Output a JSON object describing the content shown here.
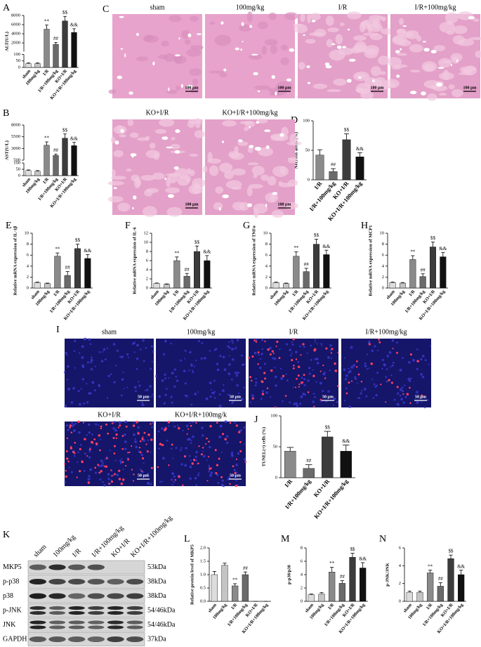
{
  "chart_data": [
    {
      "type": "bar",
      "label": "A",
      "ylabel": "ALT(U/L)",
      "categories": [
        "sham",
        "100mg/kg",
        "I/R",
        "I/R+100mg/kg",
        "KO+I/R",
        "KO+I/R+100mg/kg"
      ],
      "values": [
        30,
        30,
        5000,
        1700,
        6800,
        4300
      ],
      "errors": [
        5,
        5,
        900,
        400,
        1000,
        800
      ],
      "annotations": [
        null,
        null,
        "**",
        "##",
        "$$",
        "&&"
      ],
      "colors": [
        "#dcdcdc",
        "#c4c4c4",
        "#8a8a8a",
        "#6a6a6a",
        "#3c3c3c",
        "#111111"
      ],
      "ylim": [
        0,
        8000
      ],
      "ybreak": [
        100,
        100
      ],
      "yticks": [
        0,
        50,
        100,
        2000,
        4000,
        6000,
        8000
      ]
    },
    {
      "type": "bar",
      "label": "B",
      "ylabel": "AST(U/L)",
      "categories": [
        "sham",
        "100mg/kg",
        "I/R",
        "I/R+100mg/kg",
        "KO+I/R",
        "KO+I/R+100mg/kg"
      ],
      "values": [
        40,
        35,
        3700,
        1500,
        5200,
        3600
      ],
      "errors": [
        5,
        5,
        700,
        300,
        900,
        700
      ],
      "annotations": [
        null,
        null,
        "**",
        "##",
        "$$",
        "&&"
      ],
      "colors": [
        "#dcdcdc",
        "#c4c4c4",
        "#8a8a8a",
        "#6a6a6a",
        "#3c3c3c",
        "#111111"
      ],
      "ylim": [
        0,
        8000
      ],
      "ybreak": [
        100,
        500
      ],
      "yticks": [
        0,
        50,
        100,
        500,
        3000,
        5500,
        8000
      ]
    },
    {
      "type": "bar",
      "label": "D",
      "ylabel": "Necrosis areas (%)",
      "categories": [
        "I/R",
        "I/R+100mg/kg",
        "KO+I/R",
        "KO+I/R+100mg/kg"
      ],
      "values": [
        42,
        14,
        68,
        39
      ],
      "errors": [
        9,
        5,
        10,
        7
      ],
      "annotations": [
        null,
        "##",
        "$$",
        "&&"
      ],
      "colors": [
        "#8a8a8a",
        "#6a6a6a",
        "#3c3c3c",
        "#111111"
      ],
      "ylim": [
        0,
        100
      ],
      "yticks": [
        0,
        50,
        100
      ]
    },
    {
      "type": "bar",
      "label": "E",
      "ylabel": "Relative mRNA expression of IL-1β",
      "categories": [
        "sham",
        "100mg/kg",
        "I/R",
        "I/R+100mg/kg",
        "KO+I/R",
        "KO+I/R+100mg/kg"
      ],
      "values": [
        1.0,
        0.8,
        5.8,
        2.3,
        7.2,
        5.4
      ],
      "errors": [
        0.1,
        0.1,
        0.6,
        0.7,
        0.8,
        0.7
      ],
      "annotations": [
        null,
        null,
        "**",
        "##",
        "$$",
        "&&"
      ],
      "colors": [
        "#dcdcdc",
        "#c4c4c4",
        "#8a8a8a",
        "#6a6a6a",
        "#3c3c3c",
        "#111111"
      ],
      "ylim": [
        0,
        10
      ],
      "yticks": [
        0,
        2,
        4,
        6,
        8,
        10
      ]
    },
    {
      "type": "bar",
      "label": "F",
      "ylabel": "Relative mRNA expression of IL-6",
      "categories": [
        "sham",
        "100mg/kg",
        "I/R",
        "I/R+100mg/kg",
        "KO+I/R",
        "KO+I/R+100mg/kg"
      ],
      "values": [
        1.0,
        0.8,
        6.0,
        2.6,
        8.0,
        6.0
      ],
      "errors": [
        0.1,
        0.1,
        0.8,
        0.6,
        1.2,
        1.1
      ],
      "annotations": [
        null,
        null,
        "**",
        "##",
        "$$",
        "&&"
      ],
      "colors": [
        "#dcdcdc",
        "#c4c4c4",
        "#8a8a8a",
        "#6a6a6a",
        "#3c3c3c",
        "#111111"
      ],
      "ylim": [
        0,
        12
      ],
      "yticks": [
        0,
        2,
        4,
        6,
        8,
        10,
        12
      ]
    },
    {
      "type": "bar",
      "label": "G",
      "ylabel": "Relative mRNA expression of TNFα",
      "categories": [
        "sham",
        "100mg/kg",
        "I/R",
        "I/R+100mg/kg",
        "KO+I/R",
        "KO+I/R+100mg/kg"
      ],
      "values": [
        1.0,
        0.8,
        5.8,
        3.0,
        8.0,
        6.1
      ],
      "errors": [
        0.1,
        0.1,
        0.8,
        0.6,
        0.9,
        0.8
      ],
      "annotations": [
        null,
        null,
        "**",
        "##",
        "$$",
        "&&"
      ],
      "colors": [
        "#dcdcdc",
        "#c4c4c4",
        "#8a8a8a",
        "#6a6a6a",
        "#3c3c3c",
        "#111111"
      ],
      "ylim": [
        0,
        10
      ],
      "yticks": [
        0,
        2,
        4,
        6,
        8,
        10
      ]
    },
    {
      "type": "bar",
      "label": "H",
      "ylabel": "Relative mRNA expression of MCP1",
      "categories": [
        "sham",
        "100mg/kg",
        "I/R",
        "I/R+100mg/kg",
        "KO+I/R",
        "KO+I/R+100mg/kg"
      ],
      "values": [
        1.0,
        0.9,
        5.2,
        2.1,
        7.5,
        5.7
      ],
      "errors": [
        0.1,
        0.1,
        0.7,
        0.5,
        0.9,
        0.8
      ],
      "annotations": [
        null,
        null,
        "**",
        "##",
        "$$",
        "&&"
      ],
      "colors": [
        "#dcdcdc",
        "#c4c4c4",
        "#8a8a8a",
        "#6a6a6a",
        "#3c3c3c",
        "#111111"
      ],
      "ylim": [
        0,
        10
      ],
      "yticks": [
        0,
        2,
        4,
        6,
        8,
        10
      ]
    },
    {
      "type": "bar",
      "label": "J",
      "ylabel": "TUNEL(+) cells (%)",
      "categories": [
        "I/R",
        "I/R+100mg/kg",
        "KO+I/R",
        "KO+I/R+100mg/kg"
      ],
      "values": [
        43,
        15,
        66,
        43
      ],
      "errors": [
        6,
        6,
        9,
        10
      ],
      "annotations": [
        null,
        "##",
        "$$",
        "&&"
      ],
      "colors": [
        "#8a8a8a",
        "#6a6a6a",
        "#3c3c3c",
        "#111111"
      ],
      "ylim": [
        0,
        100
      ],
      "yticks": [
        0,
        50,
        100
      ]
    },
    {
      "type": "bar",
      "label": "L",
      "ylabel": "Relative protein level of MKP5",
      "categories": [
        "sham",
        "100mg/kg",
        "I/R",
        "I/R+100mg/kg",
        "KO+I/R",
        "KO+I/R+100mg/kg"
      ],
      "values": [
        1.0,
        1.35,
        0.58,
        1.0,
        0,
        0
      ],
      "errors": [
        0.12,
        0.08,
        0.08,
        0.1,
        0,
        0
      ],
      "annotations": [
        null,
        null,
        "**",
        "##",
        null,
        null
      ],
      "colors": [
        "#dcdcdc",
        "#c4c4c4",
        "#8a8a8a",
        "#6a6a6a",
        "#3c3c3c",
        "#111111"
      ],
      "ylim": [
        0,
        2
      ],
      "yticks": [
        {
          "value": 0,
          "label": "0.0"
        },
        0.5,
        {
          "value": 1,
          "label": "1.0"
        },
        1.5,
        {
          "value": 2,
          "label": "2.0"
        }
      ]
    },
    {
      "type": "bar",
      "label": "M",
      "ylabel": "p-p38/p38",
      "categories": [
        "sham",
        "100mg/kg",
        "I/R",
        "I/R+100mg/kg",
        "KO+I/R",
        "KO+I/R+100mg/kg"
      ],
      "values": [
        1.0,
        1.1,
        4.4,
        2.7,
        6.6,
        5.0
      ],
      "errors": [
        0.1,
        0.2,
        0.7,
        0.4,
        0.6,
        0.8
      ],
      "annotations": [
        null,
        null,
        "**",
        "##",
        "$$",
        "&&"
      ],
      "colors": [
        "#dcdcdc",
        "#c4c4c4",
        "#8a8a8a",
        "#6a6a6a",
        "#3c3c3c",
        "#111111"
      ],
      "ylim": [
        0,
        8
      ],
      "yticks": [
        0,
        2,
        4,
        6,
        8
      ]
    },
    {
      "type": "bar",
      "label": "N",
      "ylabel": "p-JNK/JNK",
      "categories": [
        "sham",
        "100mg/kg",
        "I/R",
        "I/R+100mg/kg",
        "KO+I/R",
        "KO+I/R+100mg/kg"
      ],
      "values": [
        1.0,
        1.0,
        3.2,
        1.7,
        4.8,
        3.0
      ],
      "errors": [
        0.15,
        0.15,
        0.3,
        0.4,
        0.4,
        0.5
      ],
      "annotations": [
        null,
        null,
        "**",
        "##",
        "$$",
        "&&"
      ],
      "colors": [
        "#dcdcdc",
        "#c4c4c4",
        "#8a8a8a",
        "#6a6a6a",
        "#3c3c3c",
        "#111111"
      ],
      "ylim": [
        0,
        6
      ],
      "yticks": [
        0,
        2,
        4,
        6
      ]
    }
  ],
  "he_panel": {
    "letter": "C",
    "labels": [
      "sham",
      "100mg/kg",
      "I/R",
      "I/R+100mg/kg",
      "KO+I/R",
      "KO+I/R+100mg/kg"
    ],
    "scale_bar": "100 μm"
  },
  "tunel_panel": {
    "letter": "I",
    "labels": [
      "sham",
      "100mg/kg",
      "I/R",
      "I/R+100mg/kg",
      "KO+I/R",
      "KO+I/R+100mg/k"
    ],
    "scale_bar": "50 μm"
  },
  "western_blot": {
    "letter": "K",
    "lanes": [
      "sham",
      "100mg/kg",
      "I/R",
      "I/R+100mg/kg",
      "KO+I/R",
      "KO+I/R+100mg/kg"
    ],
    "rows": [
      {
        "protein": "MKP5",
        "size": "53kDa"
      },
      {
        "protein": "p-p38",
        "size": "38kDa"
      },
      {
        "protein": "p38",
        "size": "38kDa"
      },
      {
        "protein": "p-JNK",
        "size": "54/46kDa"
      },
      {
        "protein": "JNK",
        "size": "54/46kDa"
      },
      {
        "protein": "GAPDH",
        "size": "37kDa"
      }
    ]
  }
}
